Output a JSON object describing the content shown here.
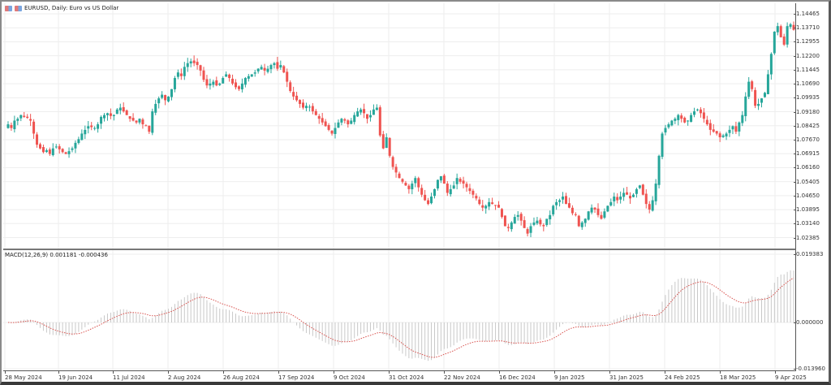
{
  "window": {
    "title": "EURUSD, Daily:  Euro vs US Dollar",
    "icons": [
      "chart-window-icon",
      "chart-type-icon"
    ]
  },
  "colors": {
    "bull": "#26a69a",
    "bear": "#ef5350",
    "grid": "#eeeeee",
    "macd_hist": "#c8c8c8",
    "macd_signal": "#d9534f"
  },
  "indicator": {
    "label": "MACD(12,26,9) 0.001181 -0.000436",
    "name": "MACD",
    "params": "12,26,9",
    "main_value": "0.001181",
    "signal_value": "-0.000436"
  },
  "chart_data": [
    {
      "type": "candlestick",
      "title": "EURUSD, Daily:  Euro vs US Dollar",
      "xlabel": "",
      "ylabel": "",
      "ylim": [
        1.02,
        1.151
      ],
      "y_ticks": [
        "1.14465",
        "1.13710",
        "1.12955",
        "1.12200",
        "1.11445",
        "1.10690",
        "1.09935",
        "1.09180",
        "1.08425",
        "1.07670",
        "1.06915",
        "1.06160",
        "1.05405",
        "1.04650",
        "1.03895",
        "1.03140",
        "1.02385"
      ],
      "x_ticks": [
        "28 May 2024",
        "19 Jun 2024",
        "11 Jul 2024",
        "2 Aug 2024",
        "26 Aug 2024",
        "17 Sep 2024",
        "9 Oct 2024",
        "31 Oct 2024",
        "22 Nov 2024",
        "16 Dec 2024",
        "9 Jan 2025",
        "31 Jan 2025",
        "24 Feb 2025",
        "18 Mar 2025",
        "9 Apr 2025"
      ],
      "grid": true,
      "closes": [
        1.085,
        1.083,
        1.087,
        1.088,
        1.09,
        1.089,
        1.0885,
        1.087,
        1.08,
        1.074,
        1.072,
        1.07,
        1.071,
        1.069,
        1.072,
        1.073,
        1.0715,
        1.07,
        1.069,
        1.0705,
        1.072,
        1.075,
        1.077,
        1.08,
        1.082,
        1.084,
        1.0835,
        1.083,
        1.085,
        1.089,
        1.09,
        1.091,
        1.0895,
        1.09,
        1.093,
        1.094,
        1.092,
        1.09,
        1.088,
        1.087,
        1.086,
        1.088,
        1.085,
        1.084,
        1.081,
        1.092,
        1.096,
        1.099,
        1.101,
        1.098,
        1.1,
        1.104,
        1.11,
        1.113,
        1.111,
        1.116,
        1.118,
        1.119,
        1.118,
        1.117,
        1.114,
        1.109,
        1.106,
        1.107,
        1.108,
        1.106,
        1.107,
        1.11,
        1.112,
        1.11,
        1.107,
        1.105,
        1.104,
        1.107,
        1.11,
        1.111,
        1.112,
        1.113,
        1.115,
        1.116,
        1.114,
        1.115,
        1.117,
        1.118,
        1.115,
        1.117,
        1.113,
        1.108,
        1.103,
        1.1,
        1.098,
        1.096,
        1.094,
        1.095,
        1.0945,
        1.092,
        1.09,
        1.088,
        1.086,
        1.084,
        1.082,
        1.08,
        1.083,
        1.086,
        1.088,
        1.087,
        1.085,
        1.087,
        1.09,
        1.092,
        1.093,
        1.091,
        1.088,
        1.09,
        1.093,
        1.094,
        1.079,
        1.072,
        1.078,
        1.068,
        1.062,
        1.059,
        1.056,
        1.054,
        1.052,
        1.05,
        1.053,
        1.056,
        1.051,
        1.047,
        1.044,
        1.042,
        1.046,
        1.05,
        1.055,
        1.057,
        1.053,
        1.048,
        1.05,
        1.052,
        1.056,
        1.054,
        1.053,
        1.051,
        1.049,
        1.047,
        1.045,
        1.042,
        1.04,
        1.041,
        1.043,
        1.042,
        1.041,
        1.04,
        1.035,
        1.03,
        1.029,
        1.032,
        1.035,
        1.036,
        1.033,
        1.029,
        1.026,
        1.03,
        1.032,
        1.033,
        1.031,
        1.03,
        1.034,
        1.036,
        1.041,
        1.043,
        1.044,
        1.046,
        1.042,
        1.04,
        1.037,
        1.036,
        1.03,
        1.032,
        1.034,
        1.038,
        1.04,
        1.039,
        1.036,
        1.034,
        1.038,
        1.041,
        1.043,
        1.046,
        1.044,
        1.046,
        1.048,
        1.047,
        1.045,
        1.047,
        1.05,
        1.052,
        1.047,
        1.042,
        1.039,
        1.044,
        1.053,
        1.068,
        1.08,
        1.083,
        1.085,
        1.087,
        1.088,
        1.09,
        1.088,
        1.086,
        1.087,
        1.09,
        1.092,
        1.093,
        1.091,
        1.088,
        1.085,
        1.082,
        1.081,
        1.08,
        1.078,
        1.079,
        1.08,
        1.082,
        1.084,
        1.081,
        1.086,
        1.09,
        1.1,
        1.108,
        1.104,
        1.095,
        1.096,
        1.099,
        1.102,
        1.112,
        1.123,
        1.135,
        1.138,
        1.132,
        1.128,
        1.138,
        1.139,
        1.136
      ]
    },
    {
      "type": "bar+line",
      "title": "MACD(12,26,9) 0.001181 -0.000436",
      "ylim": [
        -0.01396,
        0.019383
      ],
      "y_ticks": [
        "0.019383",
        "0.000000",
        "-0.013960"
      ],
      "series": [
        {
          "name": "MACD histogram",
          "type": "bar"
        },
        {
          "name": "Signal",
          "type": "line",
          "style": "dotted"
        }
      ]
    }
  ]
}
